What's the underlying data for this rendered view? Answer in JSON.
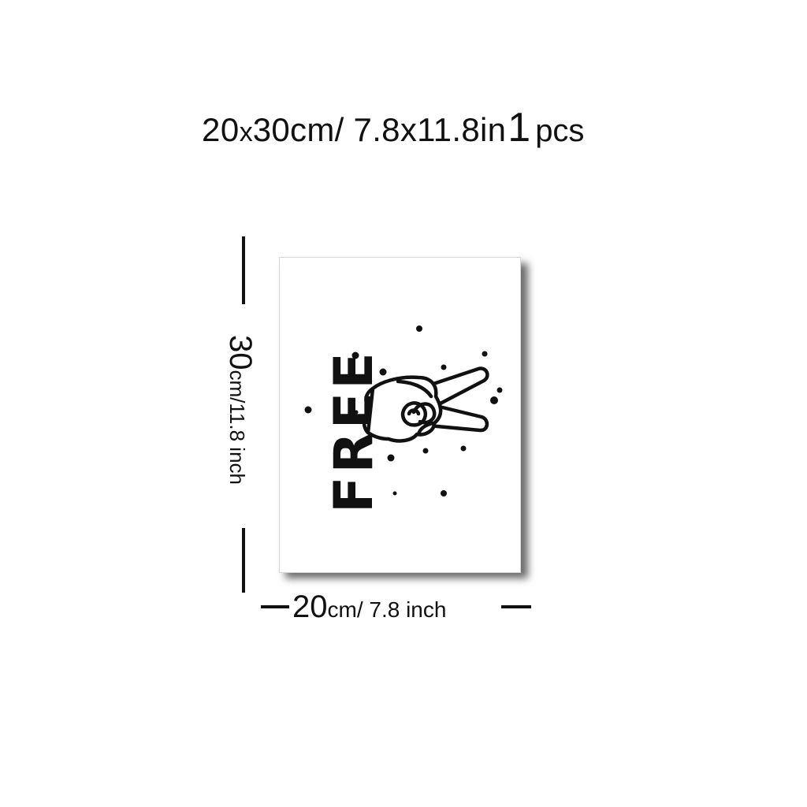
{
  "headline": {
    "size_cm_big": "20",
    "size_x": "x",
    "size_cm_rest": "30cm/ 7.8x11.8in",
    "quantity_number": "1",
    "quantity_unit": "pcs"
  },
  "poster": {
    "word": "FREE",
    "motif": "peace-sign-hand-icon",
    "ink_color": "#111111",
    "paper_color": "#ffffff"
  },
  "dimension_height": {
    "value": "30",
    "unit_text": "cm/11.8 inch"
  },
  "dimension_width": {
    "value": "20",
    "unit_text": "cm/ 7.8 inch"
  }
}
